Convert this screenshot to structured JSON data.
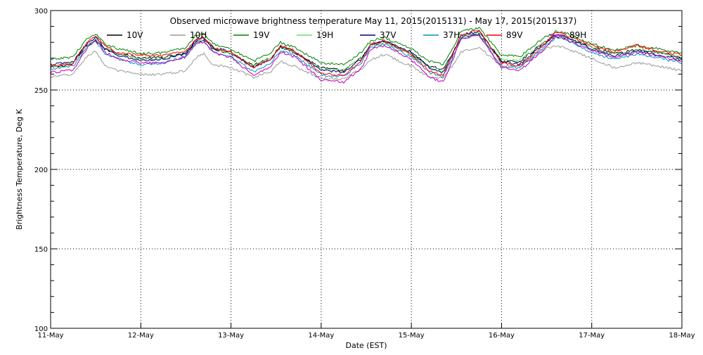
{
  "chart_data": {
    "type": "line",
    "title": "Observed microwave brightness temperature May 11, 2015(2015131) - May 17, 2015(2015137)",
    "xlabel": "Date (EST)",
    "ylabel": "Brightness Temperature, Deg K",
    "ylim": [
      100,
      300
    ],
    "yticks": [
      100,
      150,
      200,
      250,
      300
    ],
    "xlim": [
      0,
      7
    ],
    "xticks": [
      {
        "x": 0,
        "label": "11-May"
      },
      {
        "x": 1,
        "label": "12-May"
      },
      {
        "x": 2,
        "label": "13-May"
      },
      {
        "x": 3,
        "label": "14-May"
      },
      {
        "x": 4,
        "label": "15-May"
      },
      {
        "x": 5,
        "label": "16-May"
      },
      {
        "x": 6,
        "label": "17-May"
      },
      {
        "x": 7,
        "label": "18-May"
      }
    ],
    "grid": "dotted",
    "legend_position": "top",
    "colors": {
      "10V": "#000000",
      "10H": "#999999",
      "19V": "#008000",
      "19H": "#66e066",
      "37V": "#00007f",
      "37H": "#0090c8",
      "89V": "#ff0000",
      "89H": "#c000c0"
    },
    "x": [
      0.0,
      0.25,
      0.4,
      0.5,
      0.6,
      0.75,
      1.0,
      1.25,
      1.5,
      1.6,
      1.7,
      1.8,
      2.0,
      2.25,
      2.45,
      2.55,
      2.7,
      3.0,
      3.25,
      3.45,
      3.55,
      3.7,
      4.0,
      4.2,
      4.35,
      4.45,
      4.55,
      4.75,
      5.0,
      5.2,
      5.45,
      5.6,
      5.7,
      6.0,
      6.25,
      6.5,
      6.75,
      7.0
    ],
    "series": [
      {
        "name": "10V",
        "values": [
          264.0,
          266.5,
          278.0,
          281.0,
          276.5,
          273.0,
          270.0,
          270.5,
          273.0,
          280.0,
          282.0,
          276.0,
          273.0,
          265.5,
          271.0,
          277.0,
          274.0,
          264.0,
          262.0,
          270.5,
          278.0,
          280.5,
          273.0,
          265.0,
          263.0,
          272.0,
          283.0,
          285.0,
          268.0,
          268.0,
          279.0,
          284.0,
          283.0,
          277.0,
          273.0,
          275.5,
          273.5,
          270.0
        ]
      },
      {
        "name": "10H",
        "values": [
          258.0,
          260.0,
          271.0,
          274.5,
          265.5,
          262.0,
          259.5,
          260.0,
          262.0,
          270.0,
          273.0,
          266.0,
          264.0,
          258.0,
          262.0,
          268.0,
          265.0,
          257.5,
          257.0,
          263.5,
          269.0,
          272.5,
          265.0,
          258.0,
          258.0,
          265.0,
          274.0,
          277.0,
          265.0,
          265.0,
          275.0,
          278.0,
          276.5,
          270.0,
          264.0,
          267.0,
          265.0,
          262.0
        ]
      },
      {
        "name": "19V",
        "values": [
          269.0,
          271.0,
          282.0,
          285.0,
          279.0,
          276.0,
          273.0,
          273.5,
          276.5,
          284.0,
          286.0,
          279.0,
          276.0,
          268.0,
          274.0,
          280.0,
          277.0,
          267.0,
          266.0,
          274.0,
          281.0,
          283.0,
          276.0,
          268.0,
          266.0,
          275.0,
          287.0,
          289.0,
          272.0,
          271.0,
          282.0,
          287.0,
          286.0,
          279.0,
          275.0,
          278.0,
          276.0,
          273.0
        ]
      },
      {
        "name": "19H",
        "values": [
          265.0,
          267.0,
          278.5,
          282.0,
          276.0,
          272.5,
          269.5,
          270.0,
          273.0,
          281.0,
          283.0,
          276.0,
          273.0,
          265.0,
          271.0,
          277.0,
          274.0,
          263.0,
          262.5,
          271.0,
          278.0,
          280.0,
          273.0,
          264.0,
          262.0,
          272.0,
          284.0,
          286.5,
          269.0,
          268.5,
          279.0,
          284.5,
          283.5,
          276.5,
          272.5,
          275.5,
          273.5,
          270.5
        ]
      },
      {
        "name": "37V",
        "values": [
          266.0,
          267.5,
          279.0,
          283.0,
          276.0,
          272.0,
          268.5,
          269.5,
          273.0,
          281.0,
          283.0,
          276.5,
          274.0,
          264.0,
          270.0,
          277.0,
          274.5,
          262.5,
          261.0,
          270.0,
          279.0,
          281.0,
          274.0,
          264.0,
          261.0,
          272.0,
          284.5,
          287.0,
          268.0,
          266.0,
          278.0,
          285.0,
          284.0,
          276.0,
          271.5,
          274.5,
          272.0,
          269.0
        ]
      },
      {
        "name": "37H",
        "values": [
          263.0,
          265.0,
          277.0,
          281.0,
          273.0,
          269.5,
          266.0,
          267.0,
          271.0,
          279.0,
          281.0,
          274.0,
          271.0,
          261.5,
          267.5,
          275.0,
          272.0,
          259.5,
          258.5,
          267.5,
          277.0,
          279.0,
          271.0,
          261.0,
          258.5,
          269.5,
          282.5,
          285.0,
          265.0,
          263.5,
          276.0,
          283.0,
          282.0,
          273.5,
          269.5,
          272.5,
          270.0,
          267.0
        ]
      },
      {
        "name": "89V",
        "values": [
          265.0,
          266.5,
          280.0,
          284.0,
          278.0,
          273.0,
          272.0,
          271.5,
          274.5,
          281.5,
          283.5,
          277.0,
          274.0,
          263.5,
          270.0,
          278.0,
          275.0,
          260.5,
          259.0,
          268.5,
          278.5,
          281.0,
          272.5,
          262.0,
          259.0,
          271.0,
          285.0,
          287.5,
          267.0,
          265.0,
          277.5,
          286.0,
          285.0,
          278.0,
          274.0,
          278.0,
          274.5,
          272.0
        ]
      },
      {
        "name": "89H",
        "values": [
          261.0,
          262.5,
          276.0,
          281.0,
          274.0,
          269.0,
          267.0,
          267.0,
          271.0,
          278.5,
          280.5,
          273.5,
          270.5,
          259.0,
          265.5,
          274.0,
          271.0,
          256.5,
          255.0,
          264.0,
          275.5,
          278.0,
          269.0,
          258.0,
          255.0,
          267.5,
          282.5,
          285.0,
          264.0,
          262.0,
          274.5,
          283.5,
          282.5,
          275.0,
          270.5,
          274.0,
          271.0,
          268.5
        ]
      }
    ]
  }
}
